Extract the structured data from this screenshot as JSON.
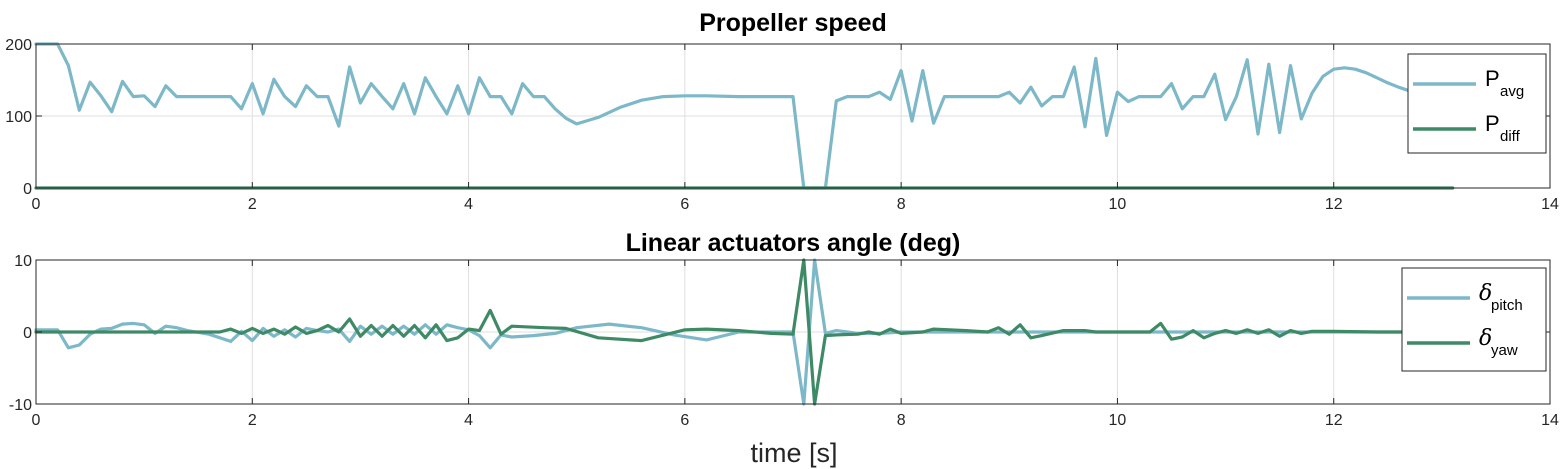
{
  "chart_data": [
    {
      "type": "line",
      "title": "Propeller speed",
      "xlim": [
        0,
        14
      ],
      "ylim": [
        0,
        200
      ],
      "xticks": [
        "0",
        "2",
        "4",
        "6",
        "8",
        "10",
        "12",
        "14"
      ],
      "yticks": [
        "0",
        "100",
        "200"
      ],
      "grid": true,
      "legend_position": "right",
      "series": [
        {
          "legend_main": "P",
          "legend_sub": "avg",
          "color": "#7db8c8",
          "x": [
            0,
            0.1,
            0.2,
            0.3,
            0.4,
            0.5,
            0.6,
            0.7,
            0.8,
            0.9,
            1.0,
            1.1,
            1.2,
            1.3,
            1.4,
            1.5,
            1.6,
            1.7,
            1.8,
            1.9,
            2.0,
            2.1,
            2.2,
            2.3,
            2.4,
            2.5,
            2.6,
            2.7,
            2.8,
            2.9,
            3.0,
            3.1,
            3.2,
            3.3,
            3.4,
            3.5,
            3.6,
            3.7,
            3.8,
            3.9,
            4.0,
            4.1,
            4.2,
            4.3,
            4.4,
            4.5,
            4.6,
            4.7,
            4.8,
            4.9,
            5.0,
            5.2,
            5.4,
            5.6,
            5.8,
            6.0,
            6.2,
            6.5,
            6.8,
            7.0,
            7.1,
            7.2,
            7.3,
            7.4,
            7.5,
            7.6,
            7.7,
            7.8,
            7.9,
            8.0,
            8.1,
            8.2,
            8.3,
            8.4,
            8.5,
            8.6,
            8.7,
            8.8,
            8.9,
            9.0,
            9.1,
            9.2,
            9.3,
            9.4,
            9.5,
            9.6,
            9.7,
            9.8,
            9.9,
            10.0,
            10.1,
            10.2,
            10.3,
            10.4,
            10.5,
            10.6,
            10.7,
            10.8,
            10.9,
            11.0,
            11.1,
            11.2,
            11.3,
            11.4,
            11.5,
            11.6,
            11.7,
            11.8,
            11.9,
            12.0,
            12.1,
            12.2,
            12.3,
            12.4,
            12.5,
            12.6,
            12.7
          ],
          "y": [
            200,
            200,
            200,
            170,
            108,
            147,
            128,
            106,
            148,
            127,
            128,
            113,
            142,
            127,
            127,
            127,
            127,
            127,
            127,
            110,
            145,
            103,
            151,
            127,
            113,
            142,
            127,
            127,
            86,
            168,
            118,
            145,
            127,
            110,
            145,
            103,
            153,
            127,
            103,
            142,
            103,
            153,
            127,
            127,
            103,
            145,
            127,
            127,
            110,
            97,
            89,
            98,
            112,
            122,
            127,
            128,
            128,
            127,
            127,
            127,
            0,
            0,
            0,
            121,
            127,
            127,
            127,
            133,
            123,
            163,
            93,
            163,
            90,
            127,
            127,
            127,
            127,
            127,
            127,
            133,
            118,
            140,
            114,
            127,
            127,
            168,
            85,
            180,
            73,
            133,
            120,
            127,
            127,
            127,
            145,
            110,
            127,
            127,
            158,
            95,
            127,
            178,
            75,
            172,
            77,
            170,
            96,
            132,
            155,
            165,
            167,
            165,
            160,
            153,
            146,
            140,
            135
          ]
        },
        {
          "legend_main": "P",
          "legend_sub": "diff",
          "color": "#3f8a66",
          "x": [
            0,
            13.1
          ],
          "y": [
            0,
            0
          ]
        }
      ]
    },
    {
      "type": "line",
      "title": "Linear actuators angle (deg)",
      "xlabel": "time [s]",
      "xlim": [
        0,
        14
      ],
      "ylim": [
        -10,
        10
      ],
      "xticks": [
        "0",
        "2",
        "4",
        "6",
        "8",
        "10",
        "12",
        "14"
      ],
      "yticks": [
        "-10",
        "0",
        "10"
      ],
      "grid": true,
      "legend_position": "right",
      "series": [
        {
          "legend_main": "δ",
          "legend_sub": "pitch",
          "color": "#7db8c8",
          "x": [
            0,
            0.2,
            0.3,
            0.4,
            0.5,
            0.6,
            0.7,
            0.8,
            0.9,
            1.0,
            1.1,
            1.2,
            1.3,
            1.4,
            1.6,
            1.8,
            1.9,
            2.0,
            2.1,
            2.2,
            2.3,
            2.4,
            2.5,
            2.6,
            2.7,
            2.8,
            2.9,
            3.0,
            3.1,
            3.2,
            3.3,
            3.4,
            3.5,
            3.6,
            3.7,
            3.8,
            3.9,
            4.0,
            4.1,
            4.2,
            4.3,
            4.4,
            4.6,
            4.8,
            5.0,
            5.3,
            5.6,
            5.9,
            6.2,
            6.5,
            6.8,
            7.0,
            7.1,
            7.2,
            7.3,
            7.4,
            7.5,
            7.6,
            7.8,
            8.0,
            8.5,
            9.0,
            9.5,
            10.0,
            10.5,
            11.0,
            11.5,
            12.0,
            12.5,
            13.1
          ],
          "y": [
            0.3,
            0.3,
            -2.2,
            -1.8,
            -0.3,
            0.4,
            0.5,
            1.1,
            1.2,
            1.0,
            -0.2,
            0.8,
            0.6,
            0.2,
            -0.3,
            -1.3,
            0.1,
            -1.2,
            0.5,
            -0.6,
            0.3,
            -0.7,
            0.5,
            0.2,
            0.0,
            0.4,
            -1.3,
            0.8,
            -0.3,
            0.8,
            -0.3,
            0.8,
            -0.3,
            1.0,
            -0.3,
            1.0,
            0.6,
            0.3,
            -0.5,
            -2.2,
            -0.4,
            -0.7,
            -0.5,
            -0.2,
            0.6,
            1.1,
            0.6,
            -0.4,
            -1.1,
            0.0,
            0.0,
            0.0,
            -10,
            10,
            -0.2,
            0.2,
            0.0,
            -0.2,
            -0.2,
            0.0,
            0.0,
            0.0,
            0.0,
            0.0,
            0.0,
            0.0,
            0.0,
            0.0,
            0.0,
            0.0
          ]
        },
        {
          "legend_main": "δ",
          "legend_sub": "yaw",
          "color": "#3f8a66",
          "x": [
            0,
            0.5,
            1.0,
            1.7,
            1.8,
            1.9,
            2.0,
            2.1,
            2.2,
            2.3,
            2.4,
            2.5,
            2.6,
            2.7,
            2.8,
            2.9,
            3.0,
            3.1,
            3.2,
            3.3,
            3.4,
            3.5,
            3.6,
            3.7,
            3.8,
            3.9,
            4.0,
            4.1,
            4.2,
            4.3,
            4.4,
            4.7,
            4.9,
            5.2,
            5.6,
            6.0,
            6.2,
            6.5,
            6.8,
            7.0,
            7.1,
            7.2,
            7.3,
            7.4,
            7.6,
            7.7,
            7.8,
            7.9,
            8.0,
            8.2,
            8.3,
            8.6,
            8.8,
            8.9,
            9.0,
            9.1,
            9.2,
            9.3,
            9.5,
            9.7,
            9.8,
            9.9,
            10.0,
            10.3,
            10.4,
            10.5,
            10.6,
            10.7,
            10.8,
            10.9,
            11.0,
            11.1,
            11.2,
            11.3,
            11.4,
            11.5,
            11.6,
            11.7,
            11.8,
            12.0,
            12.4,
            13.1
          ],
          "y": [
            0,
            0,
            0,
            0,
            0.4,
            -0.2,
            0.5,
            -0.2,
            0.4,
            -0.3,
            0.7,
            -0.2,
            0.2,
            0.9,
            0.0,
            1.8,
            -0.6,
            0.9,
            -0.6,
            0.9,
            -0.6,
            0.9,
            -0.8,
            1.0,
            -1.2,
            -0.8,
            0.4,
            0.2,
            3.0,
            -0.3,
            0.8,
            0.6,
            0.5,
            -0.8,
            -1.2,
            0.3,
            0.4,
            0.2,
            -0.2,
            -0.3,
            10,
            -10,
            -0.5,
            -0.4,
            -0.3,
            0.0,
            -0.3,
            0.4,
            -0.2,
            0.0,
            0.4,
            0.2,
            0.0,
            0.6,
            -0.3,
            1.0,
            -0.8,
            -0.5,
            0.2,
            0.2,
            0.0,
            0.0,
            0.0,
            0.0,
            1.2,
            -1.0,
            -0.7,
            0.2,
            -0.8,
            -0.2,
            0.2,
            -0.2,
            0.3,
            -0.2,
            0.3,
            -0.6,
            0.2,
            -0.2,
            0.1,
            0.1,
            0.0,
            0.0
          ]
        }
      ]
    }
  ]
}
